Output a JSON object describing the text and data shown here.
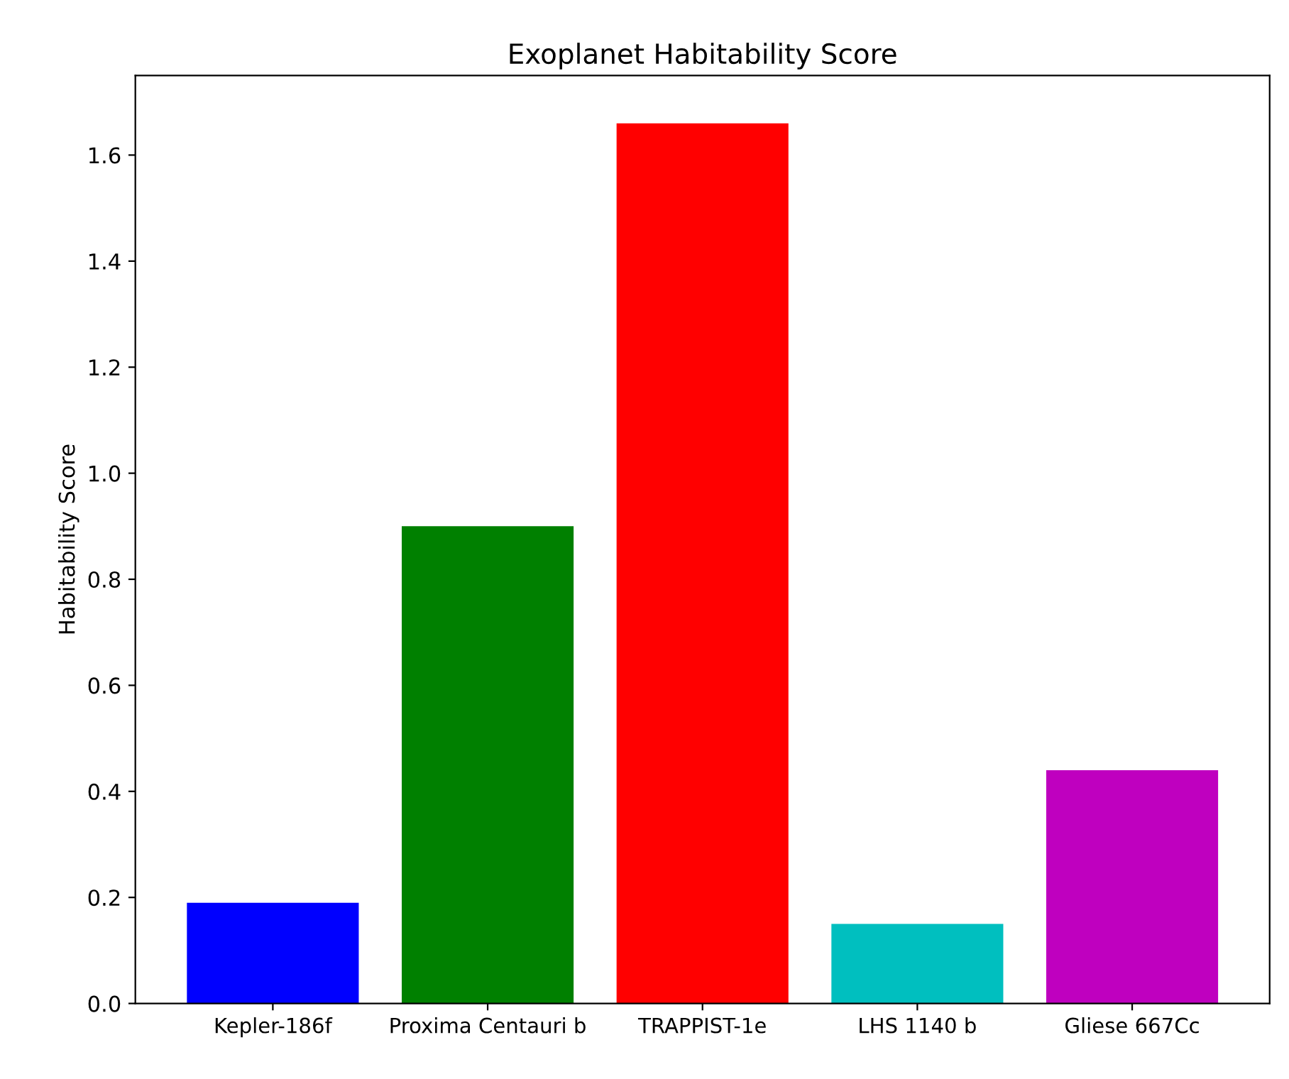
{
  "chart_data": {
    "type": "bar",
    "title": "Exoplanet Habitability Score",
    "ylabel": "Habitability Score",
    "categories": [
      "Kepler-186f",
      "Proxima Centauri b",
      "TRAPPIST-1e",
      "LHS 1140 b",
      "Gliese 667Cc"
    ],
    "values": [
      0.19,
      0.9,
      1.66,
      0.15,
      0.44
    ],
    "colors": [
      "#0000ff",
      "#008000",
      "#ff0000",
      "#00bfbf",
      "#bf00bf"
    ],
    "ylim": [
      0,
      1.75
    ],
    "yticks": [
      {
        "value": 0,
        "label": "0.0"
      },
      0.2,
      0.4,
      0.6,
      0.8,
      {
        "value": 1,
        "label": "1.0"
      },
      1.2,
      1.4,
      1.6
    ],
    "grid": false,
    "legend": false
  }
}
